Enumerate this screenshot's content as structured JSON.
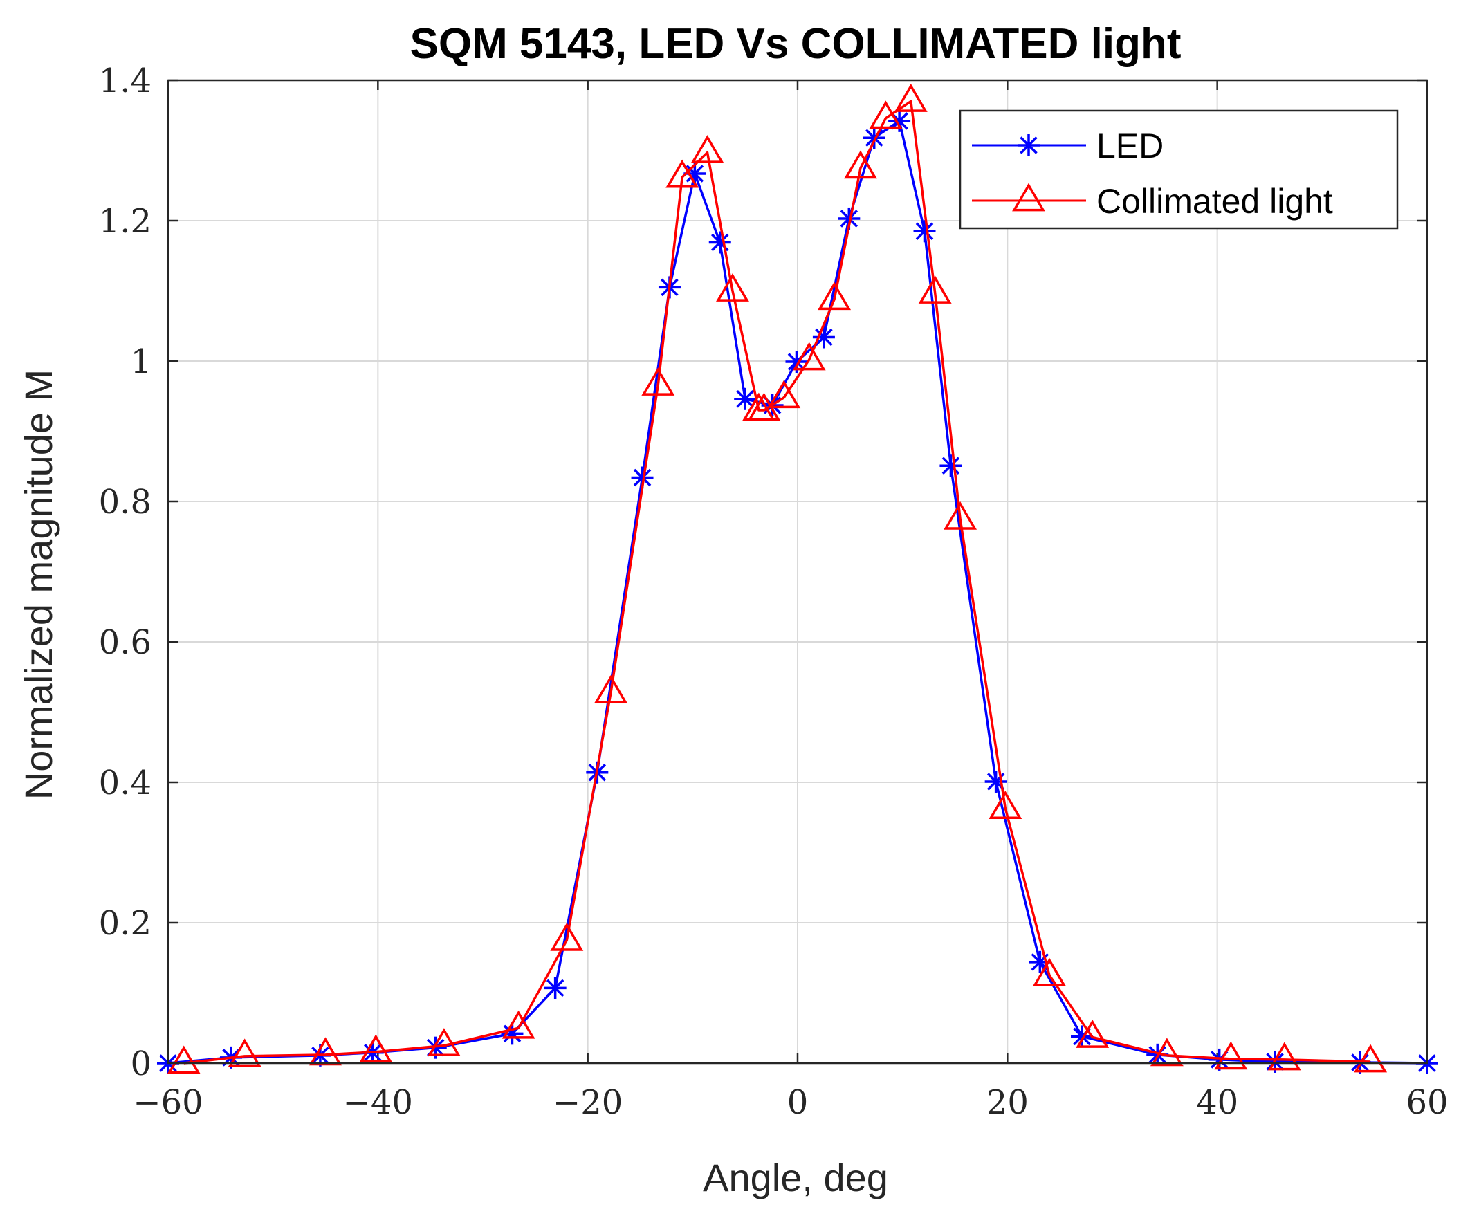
{
  "chart_data": {
    "type": "line",
    "title": "SQM 5143, LED Vs COLLIMATED light",
    "xlabel": "Angle, deg",
    "ylabel": "Normalized magnitude M",
    "xlim": [
      -60,
      60
    ],
    "ylim": [
      0,
      1.4
    ],
    "x_ticks": [
      -60,
      -40,
      -20,
      0,
      20,
      40,
      60
    ],
    "x_tick_labels": [
      "−60",
      "−40",
      "−20",
      "0",
      "20",
      "40",
      "60"
    ],
    "y_ticks": [
      0,
      0.2,
      0.4,
      0.6,
      0.8,
      1.0,
      1.2,
      1.4
    ],
    "y_tick_labels": [
      "0",
      "0.2",
      "0.4",
      "0.6",
      "0.8",
      "1",
      "1.2",
      "1.4"
    ],
    "grid": true,
    "legend_position": "top-right",
    "series": [
      {
        "name": "LED",
        "color": "#0000ff",
        "marker": "asterisk",
        "x": [
          -60,
          -54,
          -45.5,
          -40.5,
          -34.5,
          -27.2,
          -23.1,
          -19.1,
          -14.8,
          -12.2,
          -9.8,
          -7.4,
          -5.0,
          -2.4,
          -0.1,
          2.5,
          4.9,
          7.3,
          9.7,
          12.1,
          14.6,
          18.9,
          23.1,
          27.1,
          34.3,
          40.2,
          45.5,
          53.6,
          60
        ],
        "values": [
          0.0,
          0.008,
          0.011,
          0.015,
          0.022,
          0.042,
          0.107,
          0.414,
          0.834,
          1.105,
          1.267,
          1.169,
          0.946,
          0.937,
          0.999,
          1.034,
          1.203,
          1.318,
          1.342,
          1.185,
          0.851,
          0.401,
          0.144,
          0.038,
          0.012,
          0.005,
          0.002,
          0.001,
          0.0
        ]
      },
      {
        "name": "Collimated light",
        "color": "#ff0000",
        "marker": "triangle",
        "x": [
          -58.5,
          -52.7,
          -45.0,
          -40.2,
          -33.7,
          -26.6,
          -22.0,
          -17.8,
          -13.3,
          -11.0,
          -8.6,
          -6.2,
          -3.7,
          -3.2,
          -1.3,
          1.1,
          3.5,
          6.0,
          8.4,
          10.8,
          13.1,
          15.5,
          19.8,
          24.0,
          28.1,
          35.2,
          41.3,
          46.4,
          54.6
        ],
        "values": [
          0.0,
          0.01,
          0.012,
          0.016,
          0.025,
          0.05,
          0.175,
          0.528,
          0.966,
          1.262,
          1.297,
          1.1,
          0.93,
          0.93,
          0.948,
          1.002,
          1.088,
          1.275,
          1.346,
          1.37,
          1.097,
          0.775,
          0.363,
          0.125,
          0.037,
          0.011,
          0.006,
          0.005,
          0.002
        ]
      }
    ]
  }
}
